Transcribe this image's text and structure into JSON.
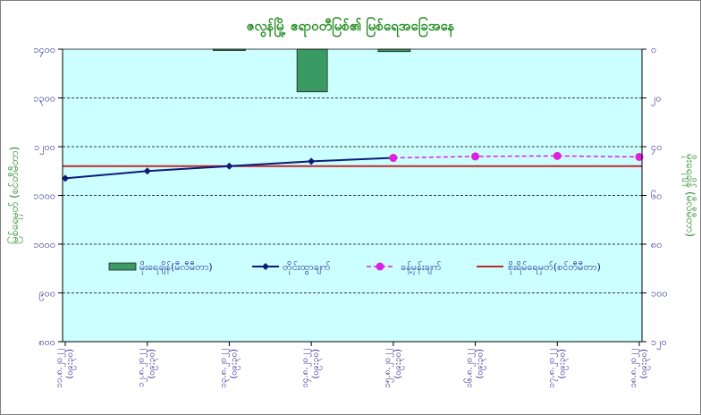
{
  "chart_data": {
    "type": "bar+line",
    "title": "ဇလွန်မြို့ ဧရာဝတီမြစ်၏ မြစ်ရေအခြေအနေ",
    "ylabel_left": "မြစ်ရေမှတ် (စင်တီမီတာ)",
    "ylabel_right": "မိုးရေချိန် (မီလီမီတာ)",
    "categories": [
      "၁၁.၈.၂၀၂၂ (၀၉:၃၀)",
      "၁၂.၈.၂၀၂၂ (၀၉:၃၀)",
      "၁၃.၈.၂၀၂၂ (၀၉:၃၀)",
      "၁၄.၈.၂၀၂၂ (၀၉:၃၀)",
      "၁၅.၈.၂၀၂၂ (၀၉:၃၀)",
      "၁၆.၈.၂၀၂၂ (၀၉:၃၀)",
      "၁၇.၈.၂၀၂၂ (၀၉:၃၀)",
      "၁၈.၈.၂၀၂၂ (၀၉:၃၀)"
    ],
    "ylim_left": [
      800,
      1400
    ],
    "ylim_right": [
      0,
      120
    ],
    "left_ticks": [
      "၈၀၀",
      "၉၀၀",
      "၁၀၀၀",
      "၁၁၀၀",
      "၁၂၀၀",
      "၁၃၀၀",
      "၁၄၀၀"
    ],
    "right_ticks": [
      "၁၂၀",
      "၁၀၀",
      "၈၀",
      "၆၀",
      "၄၀",
      "၂၀",
      "၀"
    ],
    "series": [
      {
        "name": "မိုးရေချိန်(မီလီမီတာ)",
        "kind": "bar",
        "axis": "right",
        "color": "#3a9a64",
        "values": [
          null,
          null,
          0.5,
          17.5,
          1.0,
          null,
          null,
          null
        ]
      },
      {
        "name": "တိုင်းထွာချက်",
        "kind": "line",
        "axis": "left",
        "color": "#0d1a7a",
        "values": [
          1135,
          1150,
          1160,
          1170,
          1177,
          null,
          null,
          null
        ]
      },
      {
        "name": "ခန့်မှန်းချက်",
        "kind": "line-dashed",
        "axis": "left",
        "color": "#e020e0",
        "values": [
          null,
          null,
          null,
          null,
          1177,
          1180,
          1181,
          1179
        ]
      },
      {
        "name": "စိုးရိမ်ရေမှတ်(စင်တီမီတာ)",
        "kind": "hline",
        "axis": "left",
        "color": "#c0282a",
        "value": 1160
      }
    ],
    "grid": "horizontal-dashed",
    "plot_background": "#ccffff",
    "legend_position": "inside-middle"
  }
}
